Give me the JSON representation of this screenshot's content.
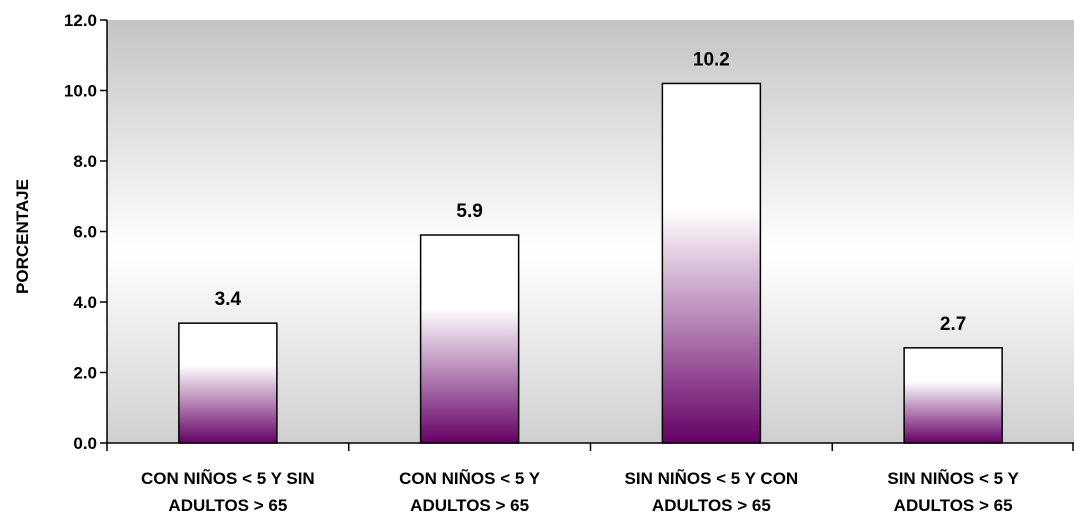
{
  "chart_data": {
    "type": "bar",
    "title": "",
    "xlabel": "",
    "ylabel": "PORCENTAJE",
    "ylim": [
      0,
      12
    ],
    "y_ticks": [
      "0.0",
      "2.0",
      "4.0",
      "6.0",
      "8.0",
      "10.0",
      "12.0"
    ],
    "y_tick_values": [
      0,
      2,
      4,
      6,
      8,
      10,
      12
    ],
    "categories": [
      [
        "CON NIÑOS < 5 Y SIN",
        "ADULTOS > 65"
      ],
      [
        "CON NIÑOS < 5 Y",
        "ADULTOS > 65"
      ],
      [
        "SIN NIÑOS < 5 Y CON",
        "ADULTOS > 65"
      ],
      [
        "SIN NIÑOS < 5 Y",
        "ADULTOS > 65"
      ]
    ],
    "values": [
      3.4,
      5.9,
      10.2,
      2.7
    ],
    "value_labels": [
      "3.4",
      "5.9",
      "10.2",
      "2.7"
    ],
    "grid": false,
    "colors": {
      "plot_bg_top": "#c4c4c4",
      "plot_bg_mid": "#ffffff",
      "plot_bg_bottom": "#cfcfcf",
      "bar_top": "#ffffff",
      "bar_bottom": "#660066",
      "bar_stroke": "#000000",
      "axis": "#000000"
    }
  }
}
